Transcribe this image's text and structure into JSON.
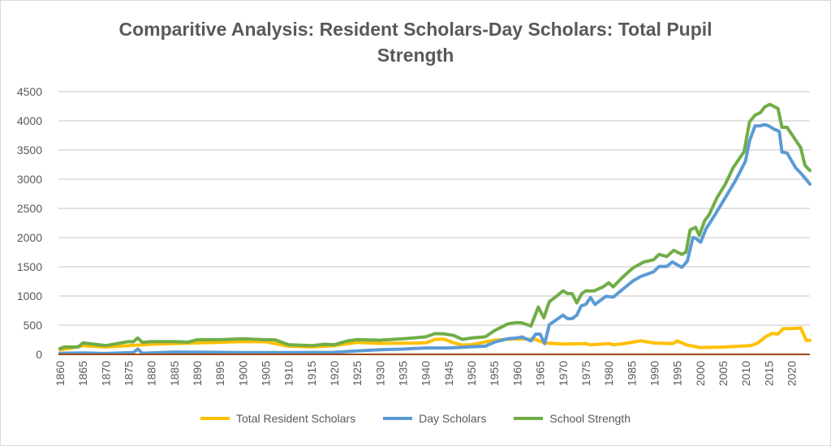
{
  "chart_data": {
    "type": "line",
    "title": "Comparitive Analysis: Resident Scholars-Day Scholars: Total Pupil Strength",
    "title_lines": [
      "Comparitive Analysis: Resident Scholars-Day Scholars: Total Pupil",
      "Strength"
    ],
    "xlabel": "",
    "ylabel": "",
    "xlim": [
      1860,
      2024
    ],
    "ylim": [
      0,
      4500
    ],
    "yticks": [
      0,
      500,
      1000,
      1500,
      2000,
      2500,
      3000,
      3500,
      4000,
      4500
    ],
    "xticks": [
      1860,
      1865,
      1870,
      1875,
      1880,
      1885,
      1890,
      1895,
      1900,
      1905,
      1910,
      1915,
      1920,
      1925,
      1930,
      1935,
      1940,
      1945,
      1950,
      1955,
      1960,
      1965,
      1970,
      1975,
      1980,
      1985,
      1990,
      1995,
      2000,
      2005,
      2010,
      2015,
      2020
    ],
    "grid": true,
    "legend": "bottom",
    "series": [
      {
        "name": "Total Resident Scholars",
        "color": "#FFC000",
        "points": [
          [
            1860,
            80
          ],
          [
            1862,
            100
          ],
          [
            1865,
            150
          ],
          [
            1870,
            126
          ],
          [
            1875,
            150
          ],
          [
            1880,
            173
          ],
          [
            1890,
            196
          ],
          [
            1900,
            220
          ],
          [
            1905,
            215
          ],
          [
            1910,
            140
          ],
          [
            1915,
            126
          ],
          [
            1920,
            150
          ],
          [
            1925,
            205
          ],
          [
            1930,
            187
          ],
          [
            1940,
            196
          ],
          [
            1942,
            255
          ],
          [
            1944,
            260
          ],
          [
            1946,
            200
          ],
          [
            1948,
            160
          ],
          [
            1950,
            165
          ],
          [
            1955,
            243
          ],
          [
            1960,
            266
          ],
          [
            1962,
            262
          ],
          [
            1964,
            255
          ],
          [
            1966,
            194
          ],
          [
            1970,
            176
          ],
          [
            1975,
            185
          ],
          [
            1976,
            162
          ],
          [
            1980,
            185
          ],
          [
            1981,
            165
          ],
          [
            1983,
            180
          ],
          [
            1987,
            231
          ],
          [
            1990,
            194
          ],
          [
            1994,
            185
          ],
          [
            1995,
            231
          ],
          [
            1997,
            162
          ],
          [
            2000,
            116
          ],
          [
            2005,
            125
          ],
          [
            2011,
            148
          ],
          [
            2012.6,
            194
          ],
          [
            2014.3,
            300
          ],
          [
            2015.8,
            361
          ],
          [
            2017,
            347
          ],
          [
            2018.2,
            440
          ],
          [
            2020,
            440
          ],
          [
            2022,
            453
          ],
          [
            2023.2,
            240
          ],
          [
            2024,
            240
          ]
        ]
      },
      {
        "name": "Day Scholars",
        "color": "#5B9BD5",
        "points": [
          [
            1860,
            20
          ],
          [
            1865,
            25
          ],
          [
            1870,
            15
          ],
          [
            1876,
            30
          ],
          [
            1877,
            90
          ],
          [
            1878,
            20
          ],
          [
            1885,
            40
          ],
          [
            1900,
            30
          ],
          [
            1910,
            30
          ],
          [
            1920,
            35
          ],
          [
            1925,
            60
          ],
          [
            1930,
            80
          ],
          [
            1935,
            90
          ],
          [
            1940,
            110
          ],
          [
            1945,
            110
          ],
          [
            1950,
            130
          ],
          [
            1953,
            140
          ],
          [
            1955,
            210
          ],
          [
            1958,
            270
          ],
          [
            1960,
            280
          ],
          [
            1961,
            300
          ],
          [
            1963,
            231
          ],
          [
            1964,
            347
          ],
          [
            1965,
            347
          ],
          [
            1966,
            185
          ],
          [
            1967,
            509
          ],
          [
            1970,
            671
          ],
          [
            1971,
            611
          ],
          [
            1972,
            611
          ],
          [
            1973,
            671
          ],
          [
            1974,
            833
          ],
          [
            1975,
            856
          ],
          [
            1976,
            972
          ],
          [
            1977,
            856
          ],
          [
            1979.4,
            995
          ],
          [
            1981,
            981
          ],
          [
            1983,
            1111
          ],
          [
            1985.3,
            1259
          ],
          [
            1987,
            1333
          ],
          [
            1989.8,
            1412
          ],
          [
            1991,
            1505
          ],
          [
            1992.7,
            1505
          ],
          [
            1993.9,
            1583
          ],
          [
            1996,
            1490
          ],
          [
            1997.2,
            1597
          ],
          [
            1998.4,
            2000
          ],
          [
            1999,
            1990
          ],
          [
            2000.1,
            1921
          ],
          [
            2001.3,
            2153
          ],
          [
            2003,
            2361
          ],
          [
            2005.5,
            2685
          ],
          [
            2007.8,
            2986
          ],
          [
            2009.9,
            3310
          ],
          [
            2010.8,
            3657
          ],
          [
            2012,
            3912
          ],
          [
            2013,
            3912
          ],
          [
            2014.1,
            3935
          ],
          [
            2015,
            3912
          ],
          [
            2016.1,
            3860
          ],
          [
            2017.3,
            3819
          ],
          [
            2017.9,
            3463
          ],
          [
            2019,
            3450
          ],
          [
            2020.9,
            3194
          ],
          [
            2022.3,
            3079
          ],
          [
            2024,
            2917
          ]
        ]
      },
      {
        "name": "School Strength",
        "color": "#70AD47",
        "points": [
          [
            1860,
            100
          ],
          [
            1861,
            126
          ],
          [
            1864,
            126
          ],
          [
            1865,
            196
          ],
          [
            1870,
            150
          ],
          [
            1875,
            220
          ],
          [
            1876,
            215
          ],
          [
            1877,
            280
          ],
          [
            1878,
            205
          ],
          [
            1880,
            220
          ],
          [
            1885,
            220
          ],
          [
            1888,
            210
          ],
          [
            1890,
            252
          ],
          [
            1895,
            252
          ],
          [
            1900,
            266
          ],
          [
            1905,
            250
          ],
          [
            1907,
            250
          ],
          [
            1910,
            165
          ],
          [
            1915,
            150
          ],
          [
            1918,
            173
          ],
          [
            1920,
            165
          ],
          [
            1923,
            233
          ],
          [
            1925,
            252
          ],
          [
            1930,
            243
          ],
          [
            1935,
            266
          ],
          [
            1940,
            300
          ],
          [
            1942,
            355
          ],
          [
            1944,
            350
          ],
          [
            1946,
            327
          ],
          [
            1948,
            257
          ],
          [
            1950,
            280
          ],
          [
            1953,
            300
          ],
          [
            1955,
            406
          ],
          [
            1958,
            523
          ],
          [
            1960,
            546
          ],
          [
            1961,
            540
          ],
          [
            1963,
            486
          ],
          [
            1964.6,
            810
          ],
          [
            1965.8,
            625
          ],
          [
            1967,
            903
          ],
          [
            1968.2,
            972
          ],
          [
            1970,
            1088
          ],
          [
            1971,
            1042
          ],
          [
            1972,
            1042
          ],
          [
            1973,
            880
          ],
          [
            1974.1,
            1042
          ],
          [
            1975,
            1088
          ],
          [
            1976.8,
            1088
          ],
          [
            1978.8,
            1157
          ],
          [
            1980,
            1227
          ],
          [
            1981,
            1157
          ],
          [
            1983,
            1319
          ],
          [
            1985.3,
            1481
          ],
          [
            1987.7,
            1583
          ],
          [
            1989.8,
            1620
          ],
          [
            1991,
            1713
          ],
          [
            1992.7,
            1676
          ],
          [
            1994.2,
            1782
          ],
          [
            1996,
            1713
          ],
          [
            1996.9,
            1750
          ],
          [
            1997.8,
            2130
          ],
          [
            1999,
            2176
          ],
          [
            1999.8,
            2037
          ],
          [
            2001,
            2292
          ],
          [
            2001.9,
            2384
          ],
          [
            2003.7,
            2685
          ],
          [
            2005.5,
            2917
          ],
          [
            2007.2,
            3194
          ],
          [
            2009.6,
            3472
          ],
          [
            2010.8,
            3981
          ],
          [
            2012,
            4097
          ],
          [
            2013.2,
            4143
          ],
          [
            2014.1,
            4236
          ],
          [
            2015.2,
            4282
          ],
          [
            2017,
            4213
          ],
          [
            2017.9,
            3889
          ],
          [
            2019,
            3889
          ],
          [
            2022,
            3542
          ],
          [
            2022.9,
            3240
          ],
          [
            2024,
            3148
          ]
        ]
      }
    ]
  }
}
